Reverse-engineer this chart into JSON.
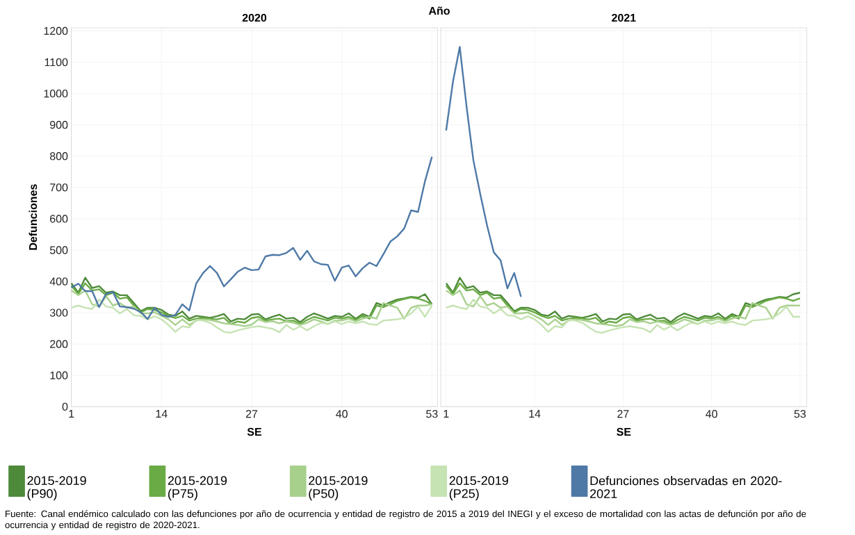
{
  "chart_data": [
    {
      "type": "line",
      "title": "2020",
      "xlabel": "SE",
      "ylabel": "Defunciones",
      "annotations": [
        "Año"
      ],
      "grid": true,
      "legend": "bottom",
      "x": [
        1,
        2,
        3,
        4,
        5,
        6,
        7,
        8,
        9,
        10,
        11,
        12,
        13,
        14,
        15,
        16,
        17,
        18,
        19,
        20,
        21,
        22,
        23,
        24,
        25,
        26,
        27,
        28,
        29,
        30,
        31,
        32,
        33,
        34,
        35,
        36,
        37,
        38,
        39,
        40,
        41,
        42,
        43,
        44,
        45,
        46,
        47,
        48,
        49,
        50,
        51,
        52,
        53
      ],
      "xlim": [
        1,
        53.8
      ],
      "xticks": [
        1,
        14,
        27,
        40,
        53
      ],
      "ylim": [
        0,
        1210
      ],
      "yticks": [
        0,
        100,
        200,
        300,
        400,
        500,
        600,
        700,
        800,
        900,
        1000,
        1100,
        1200
      ],
      "series": [
        {
          "name": "2015-2019 (P90)",
          "color": "#4e8a3a",
          "values": [
            394,
            364,
            412,
            379,
            385,
            364,
            368,
            356,
            356,
            331,
            305,
            316,
            316,
            309,
            294,
            290,
            304,
            281,
            290,
            287,
            284,
            289,
            296,
            272,
            281,
            279,
            294,
            296,
            279,
            287,
            294,
            281,
            284,
            270,
            287,
            298,
            290,
            281,
            290,
            287,
            298,
            281,
            296,
            287,
            331,
            323,
            334,
            342,
            346,
            351,
            348,
            359,
            327
          ]
        },
        {
          "name": "2015-2019 (P75)",
          "color": "#6aab45",
          "values": [
            386,
            360,
            394,
            371,
            375,
            356,
            364,
            345,
            349,
            323,
            301,
            312,
            309,
            301,
            290,
            283,
            290,
            275,
            281,
            283,
            281,
            279,
            284,
            264,
            272,
            268,
            283,
            287,
            275,
            279,
            281,
            273,
            275,
            264,
            277,
            287,
            281,
            275,
            284,
            281,
            287,
            277,
            290,
            281,
            323,
            318,
            327,
            338,
            344,
            349,
            345,
            338,
            327
          ]
        },
        {
          "name": "2015-2019 (P50)",
          "color": "#a8d08d",
          "values": [
            371,
            356,
            371,
            327,
            320,
            353,
            323,
            331,
            316,
            320,
            298,
            298,
            301,
            290,
            279,
            261,
            279,
            261,
            275,
            279,
            277,
            272,
            266,
            264,
            261,
            257,
            262,
            279,
            270,
            273,
            266,
            272,
            268,
            261,
            268,
            279,
            272,
            264,
            275,
            275,
            281,
            272,
            281,
            287,
            281,
            331,
            323,
            316,
            281,
            316,
            323,
            323,
            327
          ]
        },
        {
          "name": "2015-2019 (P25)",
          "color": "#c6e3b3",
          "values": [
            316,
            323,
            316,
            312,
            342,
            320,
            316,
            298,
            312,
            292,
            290,
            279,
            289,
            279,
            261,
            239,
            257,
            253,
            277,
            275,
            268,
            253,
            239,
            236,
            244,
            249,
            254,
            257,
            253,
            249,
            238,
            261,
            246,
            257,
            244,
            257,
            268,
            264,
            272,
            264,
            272,
            266,
            272,
            264,
            261,
            275,
            277,
            279,
            284,
            298,
            320,
            287,
            323
          ]
        },
        {
          "name": "Defunciones observadas en 2020-2021",
          "color": "#4e79a7",
          "values": [
            380,
            393,
            369,
            369,
            318,
            360,
            366,
            320,
            318,
            313,
            302,
            280,
            316,
            293,
            287,
            293,
            327,
            307,
            393,
            427,
            449,
            427,
            384,
            407,
            431,
            444,
            436,
            438,
            480,
            485,
            484,
            491,
            507,
            469,
            498,
            464,
            455,
            453,
            402,
            444,
            451,
            416,
            442,
            460,
            449,
            487,
            527,
            544,
            569,
            627,
            622,
            720,
            798
          ]
        }
      ]
    },
    {
      "type": "line",
      "title": "2021",
      "xlabel": "SE",
      "annotations": [
        "Fuente: Canal endémico calculado con las defunciones por año de ocurrencia y entidad de registro de 2015 a 2019 del INEGI y el exceso de mortalidad con las actas de defunción por año de ocurrencia y entidad de registro de 2020-2021."
      ],
      "grid": true,
      "tick_labels": "x",
      "x": [
        1,
        2,
        3,
        4,
        5,
        6,
        7,
        8,
        9,
        10,
        11,
        12,
        13,
        14,
        15,
        16,
        17,
        18,
        19,
        20,
        21,
        22,
        23,
        24,
        25,
        26,
        27,
        28,
        29,
        30,
        31,
        32,
        33,
        34,
        35,
        36,
        37,
        38,
        39,
        40,
        41,
        42,
        43,
        44,
        45,
        46,
        47,
        48,
        49,
        50,
        51,
        52,
        53
      ],
      "xlim": [
        0.2,
        54
      ],
      "xticks": [
        1,
        14,
        27,
        40,
        53
      ],
      "ylim": [
        0,
        1210
      ],
      "yticks": [
        0,
        100,
        200,
        300,
        400,
        500,
        600,
        700,
        800,
        900,
        1000,
        1100,
        1200
      ],
      "series": [
        {
          "color": "#4e8a3a",
          "values": [
            394,
            364,
            412,
            379,
            385,
            364,
            368,
            356,
            356,
            331,
            305,
            316,
            316,
            309,
            294,
            290,
            304,
            281,
            290,
            287,
            284,
            289,
            296,
            272,
            281,
            279,
            294,
            296,
            279,
            287,
            294,
            281,
            284,
            270,
            287,
            298,
            290,
            281,
            290,
            287,
            298,
            281,
            296,
            287,
            331,
            323,
            334,
            342,
            346,
            351,
            348,
            359,
            364
          ]
        },
        {
          "color": "#6aab45",
          "values": [
            386,
            360,
            394,
            371,
            375,
            356,
            364,
            345,
            349,
            323,
            301,
            312,
            309,
            301,
            290,
            283,
            290,
            275,
            281,
            283,
            281,
            279,
            284,
            264,
            272,
            268,
            283,
            287,
            275,
            279,
            281,
            273,
            275,
            264,
            277,
            287,
            281,
            275,
            284,
            281,
            287,
            277,
            290,
            281,
            323,
            318,
            327,
            338,
            344,
            349,
            345,
            338,
            346
          ]
        },
        {
          "color": "#a8d08d",
          "values": [
            371,
            356,
            371,
            327,
            320,
            353,
            323,
            331,
            316,
            320,
            298,
            298,
            301,
            290,
            279,
            261,
            279,
            261,
            275,
            279,
            277,
            272,
            266,
            264,
            261,
            257,
            262,
            279,
            270,
            273,
            266,
            272,
            268,
            261,
            268,
            279,
            272,
            264,
            275,
            275,
            281,
            272,
            281,
            287,
            281,
            331,
            323,
            316,
            281,
            316,
            323,
            323,
            323
          ]
        },
        {
          "color": "#c6e3b3",
          "values": [
            316,
            323,
            316,
            312,
            342,
            320,
            316,
            298,
            312,
            292,
            290,
            279,
            289,
            279,
            261,
            239,
            257,
            253,
            277,
            275,
            268,
            253,
            239,
            236,
            244,
            249,
            254,
            257,
            253,
            249,
            238,
            261,
            246,
            257,
            244,
            257,
            268,
            264,
            272,
            264,
            272,
            266,
            272,
            264,
            261,
            275,
            277,
            279,
            284,
            298,
            320,
            287,
            287
          ]
        },
        {
          "color": "#4e79a7",
          "values": [
            882,
            1038,
            1149,
            958,
            787,
            680,
            580,
            493,
            467,
            378,
            427,
            351,
            null,
            null,
            null,
            null,
            null,
            null,
            null,
            null,
            null,
            null,
            null,
            null,
            null,
            null,
            null,
            null,
            null,
            null,
            null,
            null,
            null,
            null,
            null,
            null,
            null,
            null,
            null,
            null,
            null,
            null,
            null,
            null,
            null,
            null,
            null,
            null,
            null,
            null,
            null,
            null,
            null
          ]
        }
      ]
    }
  ]
}
